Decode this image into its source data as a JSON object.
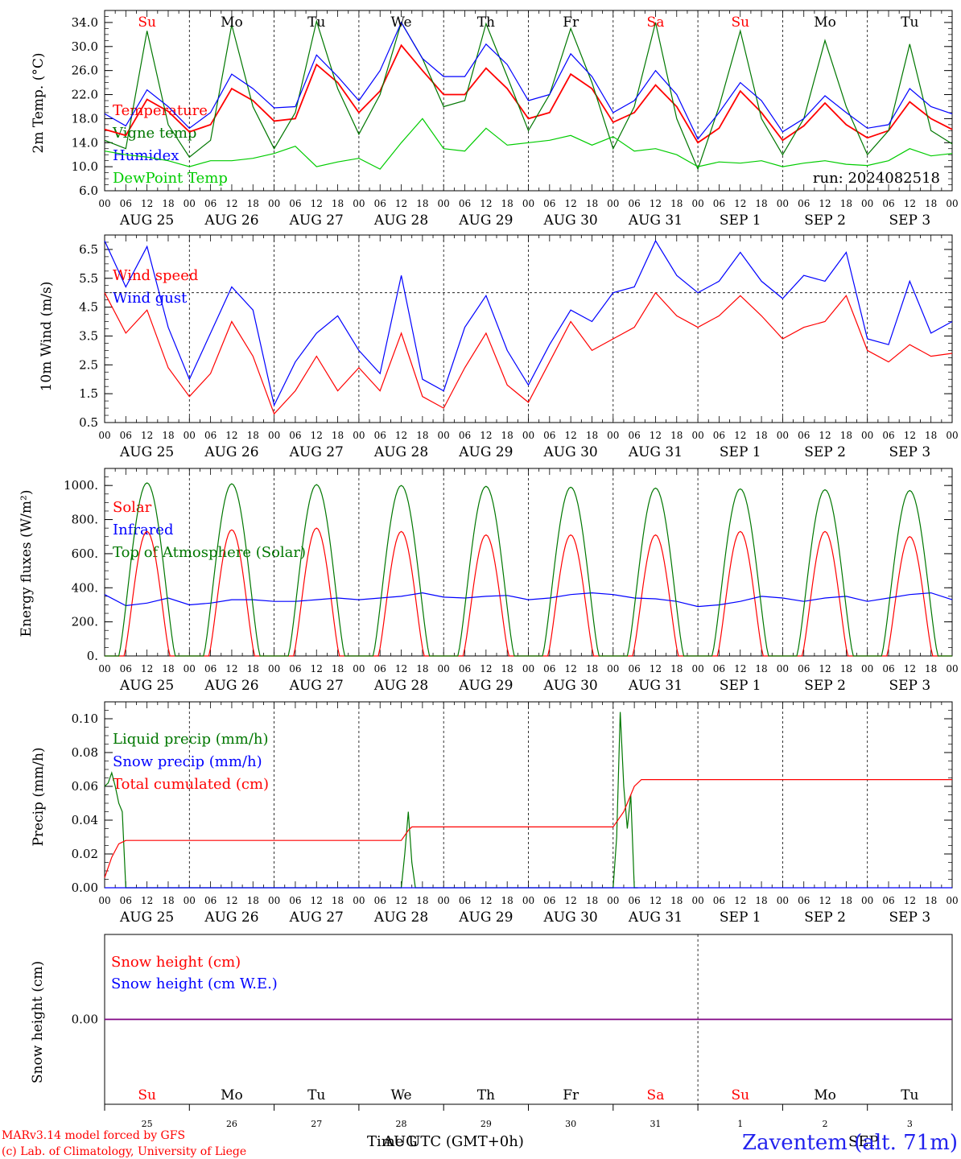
{
  "run_label": "run: 2024082518",
  "station": "Zaventem (alt. 71m)",
  "footer": {
    "line1": "MARv3.14 model forced by GFS",
    "line2": "(c) Lab. of Climatology, University of Liege"
  },
  "xlabel_time": "Time UTC (GMT+0h)",
  "xlabel_month1": "AUG",
  "xlabel_month2": "SEP",
  "days": [
    "AUG 25",
    "AUG 26",
    "AUG 27",
    "AUG 28",
    "AUG 29",
    "AUG 30",
    "AUG 31",
    "SEP  1",
    "SEP  2",
    "SEP  3"
  ],
  "day_names": [
    "Su",
    "Mo",
    "Tu",
    "We",
    "Th",
    "Fr",
    "Sa",
    "Su",
    "Mo",
    "Tu"
  ],
  "day_numbers": [
    "25",
    "26",
    "27",
    "28",
    "29",
    "30",
    "31",
    "1",
    "2",
    "3"
  ],
  "hours": [
    "00",
    "06",
    "12",
    "18"
  ],
  "last_hour": "00",
  "colors": {
    "red": "#ff0000",
    "blue": "#0000ff",
    "green": "#007700",
    "lime": "#00cc00",
    "weekend": "#ff0000",
    "weekday": "#000000",
    "purple": "#800080"
  },
  "chart_data": [
    {
      "type": "line",
      "ylabel": "2m Temp. (°C)",
      "ylim": [
        6,
        36
      ],
      "yticks": [
        "6.0",
        "10.0",
        "14.0",
        "18.0",
        "22.0",
        "26.0",
        "30.0",
        "34.0"
      ],
      "x_unit": "hours since AUG 25 00 UTC",
      "series": [
        {
          "name": "Temperature",
          "color": "#ff0000",
          "x": [
            0,
            6,
            12,
            18,
            24,
            30,
            36,
            42,
            48,
            54,
            60,
            66,
            72,
            78,
            84,
            90,
            96,
            102,
            108,
            114,
            120,
            126,
            132,
            138,
            144,
            150,
            156,
            162,
            168,
            174,
            180,
            186,
            192,
            198,
            204,
            210,
            216,
            222,
            228,
            234,
            240
          ],
          "y": [
            16.2,
            15.2,
            21.2,
            19.2,
            15.8,
            17.0,
            23.0,
            21.0,
            17.6,
            18.0,
            27.0,
            24.0,
            19.0,
            22.6,
            30.2,
            26.0,
            22.0,
            22.0,
            26.4,
            23.0,
            18.0,
            19.0,
            25.4,
            23.0,
            17.4,
            19.0,
            23.6,
            20.0,
            14.0,
            16.4,
            22.6,
            19.0,
            14.4,
            16.8,
            20.6,
            17.0,
            14.8,
            16.0,
            20.8,
            18.0,
            16.2
          ]
        },
        {
          "name": "Vigne temp",
          "color": "#007700",
          "x": [
            0,
            6,
            12,
            18,
            24,
            30,
            36,
            42,
            48,
            54,
            60,
            66,
            72,
            78,
            84,
            90,
            96,
            102,
            108,
            114,
            120,
            126,
            132,
            138,
            144,
            150,
            156,
            162,
            168,
            174,
            180,
            186,
            192,
            198,
            204,
            210,
            216,
            222,
            228,
            234,
            240
          ],
          "y": [
            14.4,
            13.0,
            32.6,
            17.0,
            11.6,
            14.4,
            33.6,
            20.0,
            13.0,
            19.0,
            34.2,
            23.0,
            15.4,
            22.0,
            34.0,
            28.0,
            20.0,
            21.0,
            33.8,
            25.0,
            16.0,
            22.0,
            33.0,
            24.0,
            13.0,
            20.0,
            34.0,
            18.0,
            9.6,
            20.0,
            32.6,
            18.0,
            12.0,
            18.0,
            31.0,
            20.0,
            12.0,
            16.0,
            30.4,
            16.0,
            13.8
          ]
        },
        {
          "name": "Humidex",
          "color": "#0000ff",
          "x": [
            0,
            6,
            12,
            18,
            24,
            30,
            36,
            42,
            48,
            54,
            60,
            66,
            72,
            78,
            84,
            90,
            96,
            102,
            108,
            114,
            120,
            126,
            132,
            138,
            144,
            150,
            156,
            162,
            168,
            174,
            180,
            186,
            192,
            198,
            204,
            210,
            216,
            222,
            228,
            234,
            240
          ],
          "y": [
            18.8,
            16.8,
            22.8,
            20.0,
            16.4,
            19.0,
            25.4,
            23.0,
            19.8,
            20.0,
            28.6,
            25.0,
            21.0,
            26.0,
            34.0,
            28.0,
            25.0,
            25.0,
            30.4,
            27.0,
            21.0,
            22.0,
            28.8,
            25.0,
            19.0,
            21.0,
            26.0,
            22.0,
            14.6,
            19.0,
            24.0,
            21.0,
            15.8,
            18.0,
            21.8,
            19.0,
            16.4,
            17.0,
            23.0,
            20.0,
            18.8
          ]
        },
        {
          "name": "DewPoint Temp",
          "color": "#00cc00",
          "x": [
            0,
            6,
            12,
            18,
            24,
            30,
            36,
            42,
            48,
            54,
            60,
            66,
            72,
            78,
            84,
            90,
            96,
            102,
            108,
            114,
            120,
            126,
            132,
            138,
            144,
            150,
            156,
            162,
            168,
            174,
            180,
            186,
            192,
            198,
            204,
            210,
            216,
            222,
            228,
            234,
            240
          ],
          "y": [
            12.6,
            12.0,
            11.6,
            11.0,
            10.0,
            11.0,
            11.0,
            11.4,
            12.2,
            13.4,
            10.0,
            10.8,
            11.4,
            9.6,
            14.0,
            18.0,
            13.0,
            12.6,
            16.4,
            13.6,
            14.0,
            14.4,
            15.2,
            13.6,
            15.0,
            12.6,
            13.0,
            12.0,
            10.0,
            10.8,
            10.6,
            11.0,
            10.0,
            10.6,
            11.0,
            10.4,
            10.2,
            11.0,
            13.0,
            11.8,
            12.2
          ]
        }
      ]
    },
    {
      "type": "line",
      "ylabel": "10m Wind (m/s)",
      "ylim": [
        0.5,
        7.0
      ],
      "yticks": [
        "0.5",
        "1.5",
        "2.5",
        "3.5",
        "4.5",
        "5.5",
        "6.5"
      ],
      "ref_line": 5.0,
      "x_unit": "hours since AUG 25 00 UTC",
      "series": [
        {
          "name": "Wind speed",
          "color": "#ff0000",
          "x": [
            0,
            6,
            12,
            18,
            24,
            30,
            36,
            42,
            48,
            54,
            60,
            66,
            72,
            78,
            84,
            90,
            96,
            102,
            108,
            114,
            120,
            126,
            132,
            138,
            144,
            150,
            156,
            162,
            168,
            174,
            180,
            186,
            192,
            198,
            204,
            210,
            216,
            222,
            228,
            234,
            240
          ],
          "y": [
            5.0,
            3.6,
            4.4,
            2.4,
            1.4,
            2.2,
            4.0,
            2.8,
            0.8,
            1.6,
            2.8,
            1.6,
            2.4,
            1.6,
            3.6,
            1.4,
            1.0,
            2.4,
            3.6,
            1.8,
            1.2,
            2.6,
            4.0,
            3.0,
            3.4,
            3.8,
            5.0,
            4.2,
            3.8,
            4.2,
            4.9,
            4.2,
            3.4,
            3.8,
            4.0,
            4.9,
            3.0,
            2.6,
            3.2,
            2.8,
            2.9
          ]
        },
        {
          "name": "Wind gust",
          "color": "#0000ff",
          "x": [
            0,
            6,
            12,
            18,
            24,
            30,
            36,
            42,
            48,
            54,
            60,
            66,
            72,
            78,
            84,
            90,
            96,
            102,
            108,
            114,
            120,
            126,
            132,
            138,
            144,
            150,
            156,
            162,
            168,
            174,
            180,
            186,
            192,
            198,
            204,
            210,
            216,
            222,
            228,
            234,
            240
          ],
          "y": [
            6.8,
            5.2,
            6.6,
            3.8,
            2.0,
            3.6,
            5.2,
            4.4,
            1.1,
            2.6,
            3.6,
            4.2,
            3.0,
            2.2,
            5.6,
            2.0,
            1.6,
            3.8,
            4.9,
            3.0,
            1.8,
            3.2,
            4.4,
            4.0,
            5.0,
            5.2,
            6.8,
            5.6,
            5.0,
            5.4,
            6.4,
            5.4,
            4.8,
            5.6,
            5.4,
            6.4,
            3.4,
            3.2,
            5.4,
            3.6,
            4.0
          ]
        }
      ]
    },
    {
      "type": "line",
      "ylabel": "Energy fluxes (W/m²)",
      "ylim": [
        0,
        1100
      ],
      "yticks": [
        "0.",
        "200.",
        "400.",
        "600.",
        "800.",
        "1000."
      ],
      "x_unit": "hours since AUG 25 00 UTC",
      "series": [
        {
          "name": "Solar",
          "color": "#ff0000",
          "daily_peak": [
            730,
            740,
            750,
            730,
            710,
            710,
            710,
            730,
            730,
            700
          ]
        },
        {
          "name": "Infrared",
          "color": "#0000ff",
          "x": [
            0,
            6,
            12,
            18,
            24,
            30,
            36,
            42,
            48,
            54,
            60,
            66,
            72,
            78,
            84,
            90,
            96,
            102,
            108,
            114,
            120,
            126,
            132,
            138,
            144,
            150,
            156,
            162,
            168,
            174,
            180,
            186,
            192,
            198,
            204,
            210,
            216,
            222,
            228,
            234,
            240
          ],
          "y": [
            360,
            295,
            310,
            340,
            300,
            310,
            330,
            330,
            320,
            320,
            330,
            340,
            330,
            340,
            350,
            370,
            345,
            340,
            350,
            355,
            330,
            340,
            360,
            370,
            360,
            340,
            335,
            320,
            290,
            300,
            320,
            350,
            340,
            320,
            340,
            350,
            320,
            340,
            360,
            370,
            330
          ]
        },
        {
          "name": "Top of Atmosphere (Solar)",
          "color": "#007700",
          "daily_peak": [
            1015,
            1010,
            1005,
            1000,
            995,
            990,
            985,
            980,
            975,
            970
          ]
        }
      ]
    },
    {
      "type": "line",
      "ylabel": "Precip (mm/h)",
      "ylim": [
        0,
        0.11
      ],
      "yticks": [
        "0.00",
        "0.02",
        "0.04",
        "0.06",
        "0.08",
        "0.10"
      ],
      "x_unit": "hours since AUG 25 00 UTC",
      "series": [
        {
          "name": "Liquid precip (mm/h)",
          "color": "#007700",
          "x": [
            0,
            1,
            2,
            3,
            4,
            5,
            6,
            7,
            84,
            85,
            86,
            87,
            88,
            89,
            90,
            144,
            145,
            146,
            147,
            148,
            149,
            150,
            151
          ],
          "y": [
            0.06,
            0.062,
            0.068,
            0.06,
            0.05,
            0.045,
            0.0,
            0.0,
            0.0,
            0.02,
            0.045,
            0.015,
            0.0,
            0.0,
            0.0,
            0.0,
            0.03,
            0.104,
            0.06,
            0.035,
            0.055,
            0.0,
            0.0
          ]
        },
        {
          "name": "Snow precip (mm/h)",
          "color": "#0000ff",
          "x": [
            0,
            240
          ],
          "y": [
            0,
            0
          ]
        },
        {
          "name": "Total cumulated (cm)",
          "color": "#ff0000",
          "x": [
            0,
            2,
            4,
            6,
            84,
            86,
            87,
            90,
            144,
            147,
            150,
            152,
            240
          ],
          "y": [
            0.006,
            0.018,
            0.026,
            0.028,
            0.028,
            0.034,
            0.036,
            0.036,
            0.036,
            0.045,
            0.06,
            0.064,
            0.064
          ]
        }
      ]
    },
    {
      "type": "line",
      "ylabel": "Snow height (cm)",
      "ylim": [
        -0.01,
        0.01
      ],
      "yticks": [
        "0.00"
      ],
      "x_unit": "hours since AUG 25 00 UTC",
      "series": [
        {
          "name": "Snow height (cm)",
          "color": "#ff0000",
          "x": [
            0,
            240
          ],
          "y": [
            0,
            0
          ]
        },
        {
          "name": "Snow height (cm W.E.)",
          "color": "#0000ff",
          "x": [
            0,
            240
          ],
          "y": [
            0,
            0
          ]
        }
      ]
    }
  ]
}
